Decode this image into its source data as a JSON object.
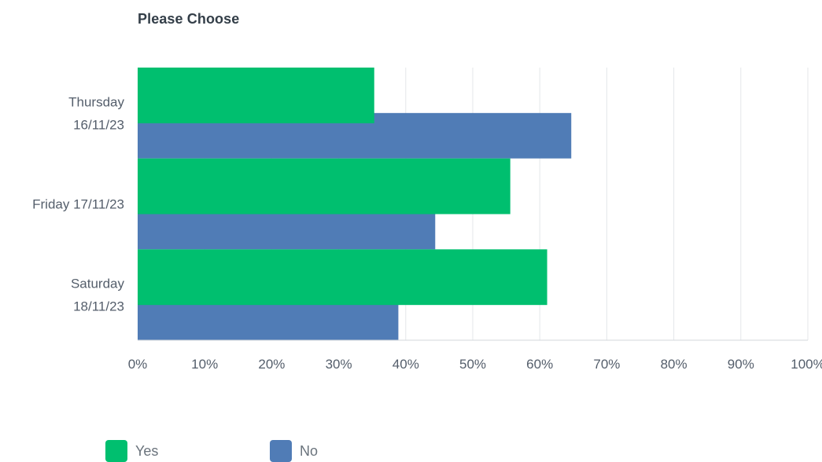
{
  "chart_data": {
    "type": "bar",
    "orientation": "horizontal",
    "title": "Please Choose",
    "categories": [
      [
        "Thursday",
        "16/11/23"
      ],
      [
        "Friday 17/11/23"
      ],
      [
        "Saturday",
        "18/11/23"
      ]
    ],
    "series": [
      {
        "name": "Yes",
        "color": "#00bf6f",
        "values": [
          35.3,
          55.6,
          61.1
        ]
      },
      {
        "name": "No",
        "color": "#507cb6",
        "values": [
          64.7,
          44.4,
          38.9
        ]
      }
    ],
    "xticks": [
      "0%",
      "10%",
      "20%",
      "30%",
      "40%",
      "50%",
      "60%",
      "70%",
      "80%",
      "90%",
      "100%"
    ],
    "xlim": [
      0,
      100
    ],
    "grid": true,
    "legend_position": "bottom-left"
  }
}
